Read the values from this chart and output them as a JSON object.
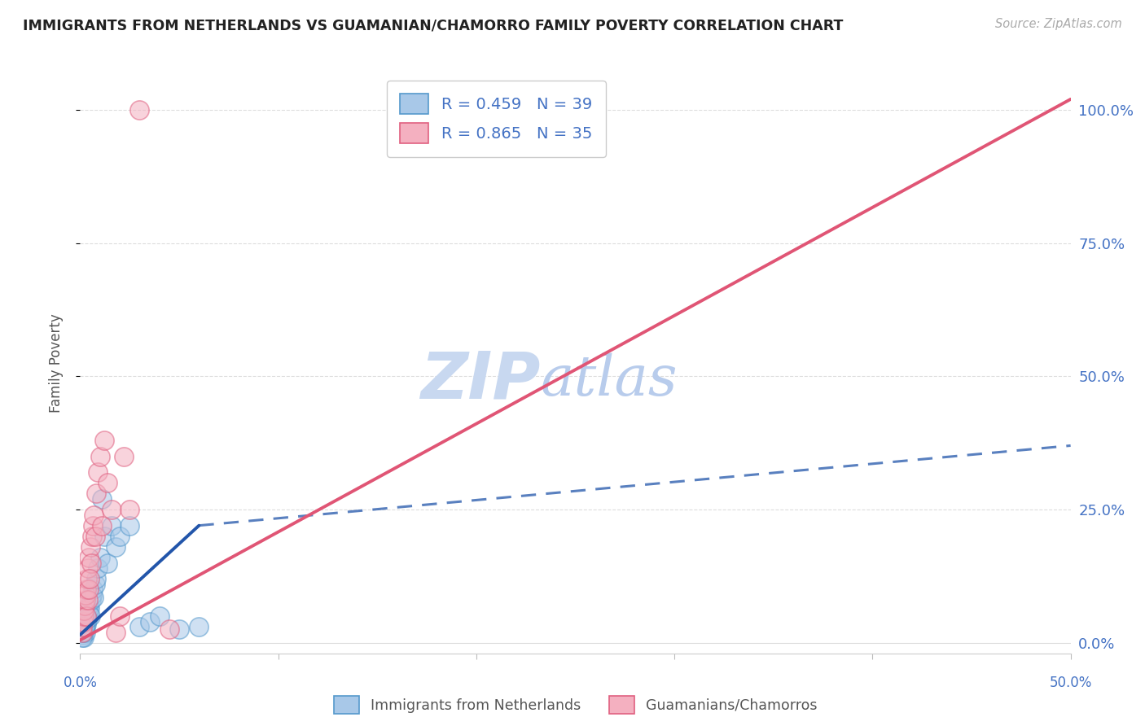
{
  "title": "IMMIGRANTS FROM NETHERLANDS VS GUAMANIAN/CHAMORRO FAMILY POVERTY CORRELATION CHART",
  "source": "Source: ZipAtlas.com",
  "ylabel": "Family Poverty",
  "legend_label1": "Immigrants from Netherlands",
  "legend_label2": "Guamanians/Chamorros",
  "color_blue_fill": "#a8c8e8",
  "color_pink_fill": "#f4b0c0",
  "color_blue_edge": "#5599cc",
  "color_pink_edge": "#e06080",
  "color_blue_line": "#2255aa",
  "color_pink_line": "#e05575",
  "color_text_blue": "#4472c4",
  "watermark_zip_color": "#c8d8f0",
  "watermark_atlas_color": "#b8ccec",
  "blue_x": [
    0.15,
    0.18,
    0.2,
    0.22,
    0.25,
    0.28,
    0.3,
    0.32,
    0.35,
    0.38,
    0.4,
    0.42,
    0.45,
    0.48,
    0.5,
    0.55,
    0.6,
    0.65,
    0.7,
    0.75,
    0.8,
    0.9,
    1.0,
    1.1,
    1.2,
    1.4,
    1.6,
    1.8,
    2.0,
    2.5,
    3.0,
    3.5,
    4.0,
    5.0,
    6.0,
    0.12,
    0.16,
    0.24,
    0.36
  ],
  "blue_y": [
    1.5,
    2.0,
    1.0,
    2.5,
    3.0,
    2.0,
    4.0,
    3.5,
    5.0,
    4.5,
    6.0,
    5.5,
    7.0,
    6.5,
    5.0,
    8.0,
    9.0,
    10.0,
    8.5,
    11.0,
    12.0,
    14.0,
    16.0,
    27.0,
    20.0,
    15.0,
    22.0,
    18.0,
    20.0,
    22.0,
    3.0,
    4.0,
    5.0,
    2.5,
    3.0,
    1.0,
    2.0,
    3.0,
    4.5
  ],
  "pink_x": [
    0.1,
    0.12,
    0.15,
    0.18,
    0.2,
    0.22,
    0.25,
    0.28,
    0.3,
    0.32,
    0.35,
    0.38,
    0.4,
    0.45,
    0.5,
    0.55,
    0.6,
    0.65,
    0.7,
    0.8,
    0.9,
    1.0,
    1.2,
    1.4,
    1.6,
    0.42,
    0.48,
    0.75,
    1.1,
    1.8,
    2.0,
    2.2,
    2.5,
    3.0,
    4.5
  ],
  "pink_y": [
    2.0,
    3.0,
    4.0,
    5.0,
    6.0,
    7.0,
    8.0,
    9.0,
    5.0,
    10.0,
    12.0,
    14.0,
    8.0,
    16.0,
    18.0,
    15.0,
    20.0,
    22.0,
    24.0,
    28.0,
    32.0,
    35.0,
    38.0,
    30.0,
    25.0,
    10.0,
    12.0,
    20.0,
    22.0,
    2.0,
    5.0,
    35.0,
    25.0,
    100.0,
    2.5
  ],
  "blue_solid_x0": 0.0,
  "blue_solid_x1": 6.0,
  "blue_solid_y0": 1.5,
  "blue_solid_y1": 22.0,
  "blue_dash_x0": 6.0,
  "blue_dash_x1": 50.0,
  "blue_dash_y0": 22.0,
  "blue_dash_y1": 37.0,
  "pink_solid_x0": 0.0,
  "pink_solid_x1": 50.0,
  "pink_solid_y0": 0.5,
  "pink_solid_y1": 102.0,
  "xtick_positions": [
    0,
    10,
    20,
    30,
    40,
    50
  ],
  "ytick_values": [
    0,
    25,
    50,
    75,
    100
  ],
  "xmin": 0,
  "xmax": 50,
  "ymin": -2,
  "ymax": 107
}
